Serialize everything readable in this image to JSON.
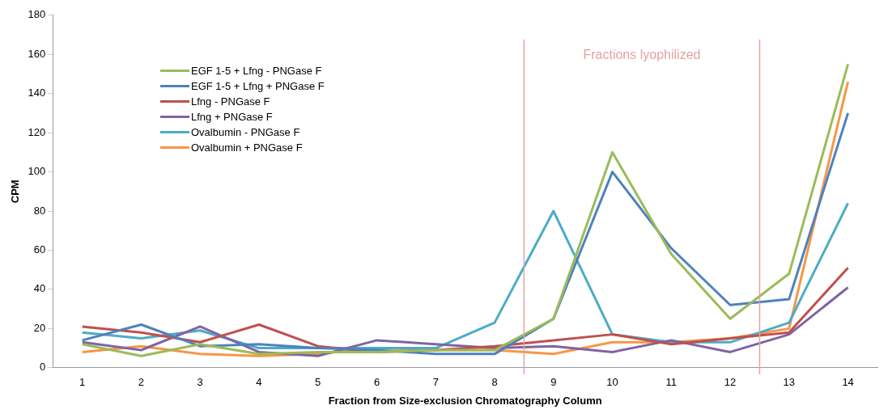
{
  "chart_data": {
    "type": "line",
    "xlabel": "Fraction from Size-exclusion Chromatography Column",
    "ylabel": "CPM",
    "x": [
      1,
      2,
      3,
      4,
      5,
      6,
      7,
      8,
      9,
      10,
      11,
      12,
      13,
      14
    ],
    "xlim": [
      0.5,
      14.5
    ],
    "xticks": [
      1,
      2,
      3,
      4,
      5,
      6,
      7,
      8,
      9,
      10,
      11,
      12,
      13,
      14
    ],
    "ylim": [
      0,
      180
    ],
    "yticks": [
      0,
      20,
      40,
      60,
      80,
      100,
      120,
      140,
      160,
      180
    ],
    "grid": false,
    "legend": "top left",
    "marker": "none",
    "line_style": "solid",
    "series": [
      {
        "name": "EGF 1-5 + Lfng - PNGase F",
        "color": "#9bbb59",
        "values": [
          12,
          6,
          12,
          7,
          8,
          8,
          9,
          9,
          25,
          110,
          58,
          25,
          48,
          155
        ]
      },
      {
        "name": "EGF 1-5 + Lfng + PNGase F",
        "color": "#4f81bd",
        "values": [
          14,
          22,
          11,
          12,
          10,
          9,
          7,
          7,
          25,
          100,
          61,
          32,
          35,
          130
        ]
      },
      {
        "name": "Lfng - PNGase F",
        "color": "#c0504d",
        "values": [
          21,
          18,
          13,
          22,
          11,
          8,
          9,
          11,
          14,
          17,
          12,
          15,
          18,
          51
        ]
      },
      {
        "name": "Lfng + PNGase F",
        "color": "#8064a2",
        "values": [
          13,
          9,
          21,
          8,
          6,
          14,
          12,
          10,
          11,
          8,
          14,
          8,
          17,
          41
        ]
      },
      {
        "name": "Ovalbumin - PNGase F",
        "color": "#4bacc6",
        "values": [
          18,
          15,
          19,
          10,
          10,
          10,
          10,
          23,
          80,
          17,
          13,
          13,
          23,
          84
        ]
      },
      {
        "name": "Ovalbumin + PNGase F",
        "color": "#f79646",
        "values": [
          8,
          11,
          7,
          6,
          7,
          10,
          9,
          9,
          7,
          13,
          13,
          15,
          20,
          146
        ]
      }
    ],
    "ref_lines": [
      {
        "axis": "x",
        "value": 8.5,
        "color": "#e6a1a1"
      },
      {
        "axis": "x",
        "value": 12.5,
        "color": "#e6a1a1"
      }
    ],
    "annotations": [
      "Fractions lyophilized"
    ]
  }
}
